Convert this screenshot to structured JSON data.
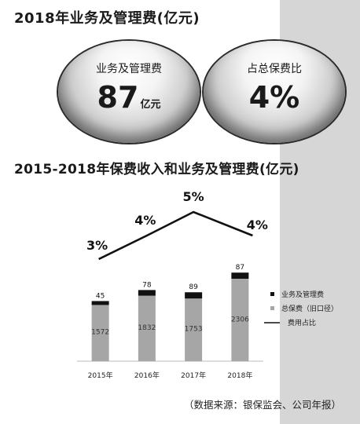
{
  "header": {
    "title1": "2018年业务及管理费(亿元)",
    "title2": "2015-2018年保费收入和业务及管理费(亿元)"
  },
  "highlights": [
    {
      "label": "业务及管理费",
      "value": "87",
      "unit": "亿元"
    },
    {
      "label": "占总保费比",
      "value": "4%",
      "unit": ""
    }
  ],
  "chart_data": {
    "type": "bar",
    "categories": [
      "2015年",
      "2016年",
      "2017年",
      "2018年"
    ],
    "series": [
      {
        "name": "业务及管理费",
        "values": [
          45,
          78,
          89,
          87
        ],
        "color": "#111111"
      },
      {
        "name": "总保费（旧口径）",
        "values": [
          1572,
          1832,
          1753,
          2306
        ],
        "color": "#a6a6a6"
      },
      {
        "name": "费用占比",
        "values": [
          3,
          4,
          5,
          4
        ],
        "labels": [
          "3%",
          "4%",
          "5%",
          "4%"
        ],
        "type": "line",
        "color": "#111111"
      }
    ],
    "grid": false,
    "legend_position": "right"
  },
  "footer": {
    "source": "（数据来源：银保监会、公司年报）"
  }
}
